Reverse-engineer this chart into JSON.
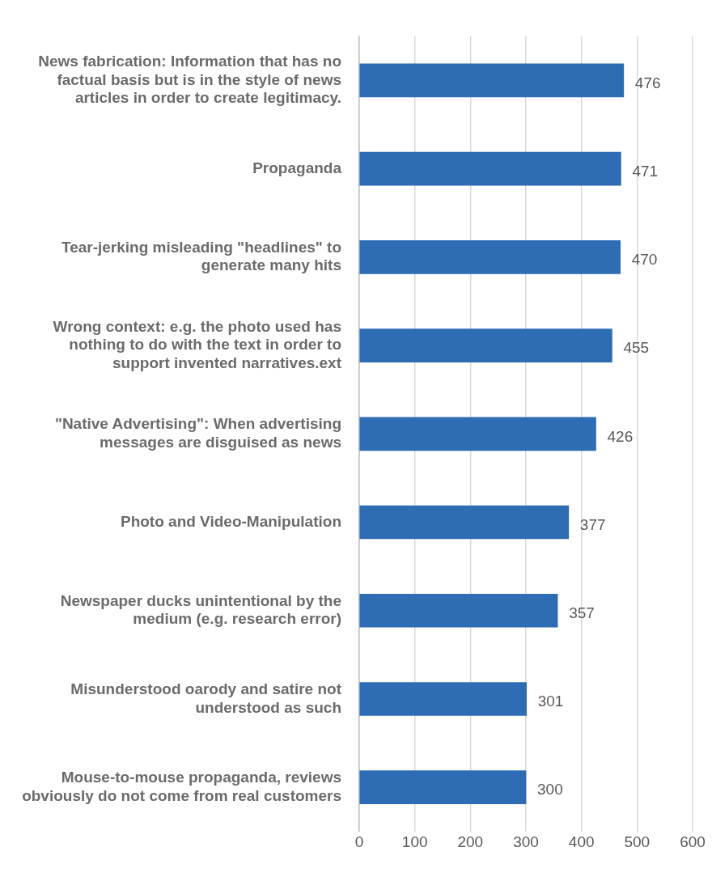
{
  "chart_data": {
    "type": "bar",
    "orientation": "horizontal",
    "categories": [
      "News fabrication: Information that has no factual basis but is in the style of news articles in order to create legitimacy.",
      "Propaganda",
      "Tear-jerking misleading \"headlines\" to generate many hits",
      "Wrong context: e.g. the photo used has nothing to do with the text in order to support invented narratives.ext",
      "\"Native Advertising\": When advertising messages are disguised as news",
      "Photo and Video-Manipulation",
      "Newspaper ducks unintentional by the medium (e.g. research error)",
      "Misunderstood oarody and satire not understood as such",
      "Mouse-to-mouse propaganda, reviews obviously do not come from real customers"
    ],
    "values": [
      476,
      471,
      470,
      455,
      426,
      377,
      357,
      301,
      300
    ],
    "color": "#2e6db4",
    "xlim": [
      0,
      600
    ],
    "xticks": [
      0,
      100,
      200,
      300,
      400,
      500,
      600
    ],
    "grid": "x",
    "data_labels": true,
    "legend": false
  }
}
